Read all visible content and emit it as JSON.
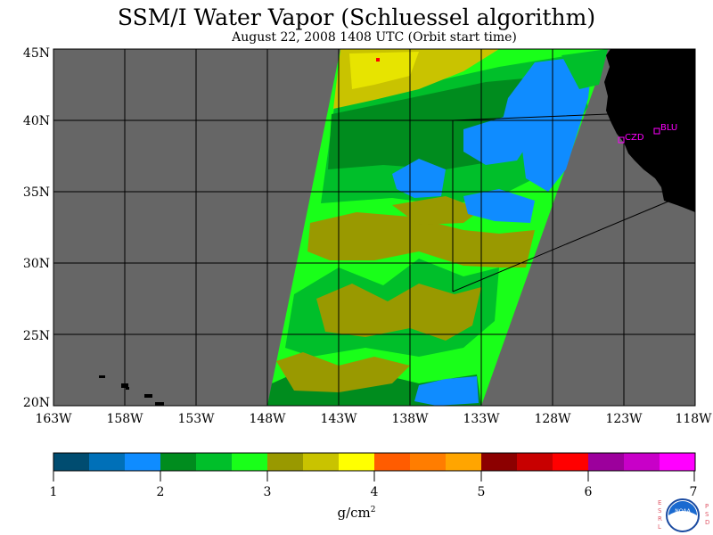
{
  "title": "SSM/I Water Vapor (Schluessel algorithm)",
  "subtitle": "August 22, 2008  1408 UTC  (Orbit start time)",
  "colors": {
    "ocean": "#666666",
    "land": "#000000",
    "grid": "#000000",
    "station": "#ff00ff",
    "frame": "#000000"
  },
  "map": {
    "lat_labels": [
      "45N",
      "40N",
      "35N",
      "30N",
      "25N",
      "20N"
    ],
    "lon_labels": [
      "163W",
      "158W",
      "153W",
      "148W",
      "143W",
      "138W",
      "133W",
      "128W",
      "123W",
      "118W"
    ],
    "lat_range": [
      20,
      45
    ],
    "lon_range": [
      -163,
      -118
    ],
    "stations": [
      {
        "name": "CZD",
        "marker": "open-square-icon"
      },
      {
        "name": "BLU",
        "marker": "open-square-icon"
      }
    ]
  },
  "colorbar": {
    "tick_labels": [
      "1",
      "2",
      "3",
      "4",
      "5",
      "6",
      "7"
    ],
    "range": [
      1,
      7
    ],
    "unit_label": "g/cm",
    "unit_superscript": "2",
    "colors": [
      "#004c70",
      "#0070b8",
      "#0f8cff",
      "#008c1e",
      "#00bf2a",
      "#19ff19",
      "#999900",
      "#c9c300",
      "#ffff00",
      "#ff5c00",
      "#ff7d00",
      "#ffa500",
      "#8c0000",
      "#c80000",
      "#ff0000",
      "#9c009c",
      "#c800c8",
      "#ff00ff"
    ]
  },
  "logo": {
    "left_text": "ESRL",
    "right_text": "PSD",
    "center_text": "NOAA",
    "icon": "noaa-logo-icon"
  }
}
